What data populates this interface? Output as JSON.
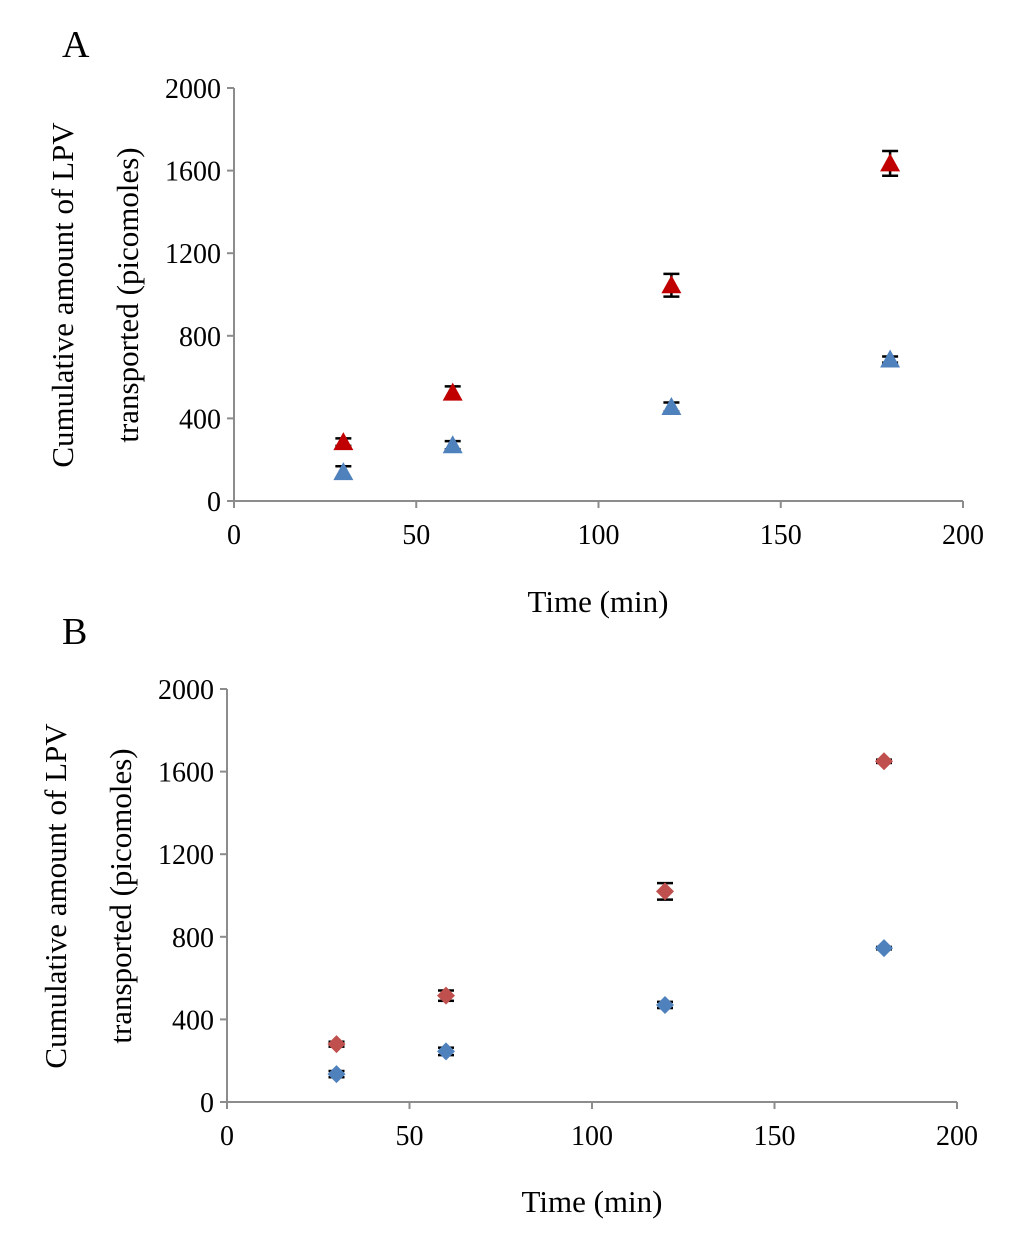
{
  "chart_data": [
    {
      "panel": "A",
      "type": "scatter",
      "marker": "triangle",
      "title": "",
      "xlabel": "Time (min)",
      "ylabel_lines": [
        "Cumulative amount of LPV",
        "transported (picomoles)"
      ],
      "xlim": [
        0,
        200
      ],
      "ylim": [
        0,
        2000
      ],
      "xticks": [
        0,
        50,
        100,
        150,
        200
      ],
      "yticks": [
        0,
        400,
        800,
        1200,
        1600,
        2000
      ],
      "grid": false,
      "series": [
        {
          "name": "red",
          "color": "#c00000",
          "x": [
            30,
            60,
            120,
            180
          ],
          "y": [
            285,
            525,
            1045,
            1635
          ],
          "err": [
            18,
            30,
            55,
            60
          ]
        },
        {
          "name": "blue",
          "color": "#4f81bd",
          "x": [
            30,
            60,
            120,
            180
          ],
          "y": [
            140,
            270,
            455,
            685
          ],
          "err": [
            28,
            20,
            22,
            15
          ]
        }
      ]
    },
    {
      "panel": "B",
      "type": "scatter",
      "marker": "diamond",
      "title": "",
      "xlabel": "Time (min)",
      "ylabel_lines": [
        "Cumulative amount of LPV",
        "transported (picomoles)"
      ],
      "xlim": [
        0,
        200
      ],
      "ylim": [
        0,
        2000
      ],
      "xticks": [
        0,
        50,
        100,
        150,
        200
      ],
      "yticks": [
        0,
        400,
        800,
        1200,
        1600,
        2000
      ],
      "grid": false,
      "series": [
        {
          "name": "red",
          "color": "#c0504d",
          "x": [
            30,
            60,
            120,
            180
          ],
          "y": [
            280,
            515,
            1020,
            1650
          ],
          "err": [
            12,
            25,
            40,
            8
          ]
        },
        {
          "name": "blue",
          "color": "#4f81bd",
          "x": [
            30,
            60,
            120,
            180
          ],
          "y": [
            135,
            245,
            470,
            745
          ],
          "err": [
            15,
            18,
            15,
            6
          ]
        }
      ]
    }
  ]
}
